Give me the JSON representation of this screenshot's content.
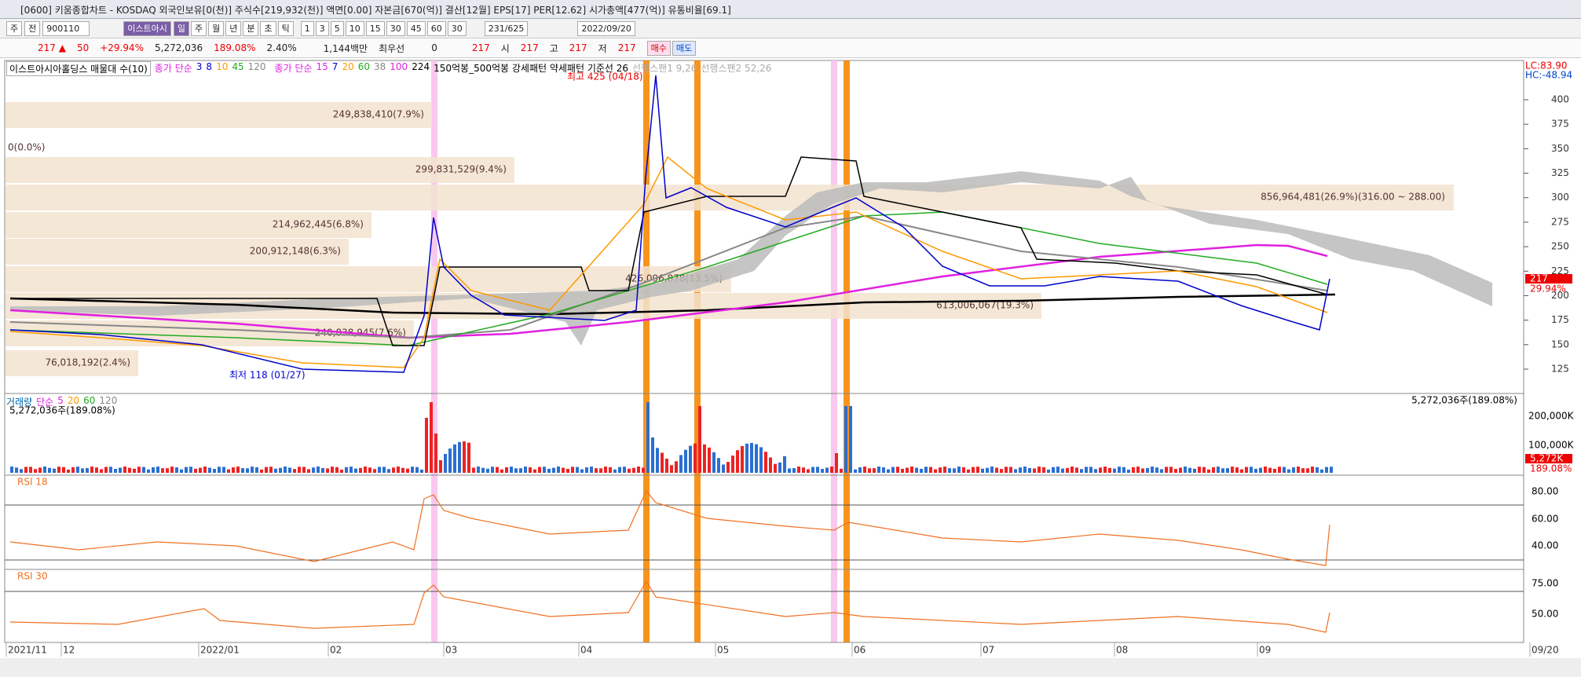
{
  "window": {
    "title": "[0600] 키움종합차트 - KOSDAQ 외국인보유[0(천)] 주식수[219,932(천)] 액면[0.00] 자본금[670(억)] 결산[12월] EPS[17] PER[12.62] 시가총액[477(억)] 유통비율[69.1]"
  },
  "toolbar": {
    "tabs": [
      "주",
      "전"
    ],
    "code": "900110",
    "name": "이스트아시",
    "periods": [
      "일",
      "주",
      "월",
      "년",
      "분",
      "초",
      "틱"
    ],
    "intervals": [
      "1",
      "3",
      "5",
      "10",
      "15",
      "30",
      "45",
      "60",
      "30"
    ],
    "count": "231/625",
    "date": "2022/09/20"
  },
  "quote": {
    "price": "217",
    "change": "50",
    "rate": "+29.94%",
    "volume": "5,272,036",
    "volume_rate": "189.08%",
    "turnover": "2.40%",
    "amount": "1,144백만",
    "best": "최우선",
    "best_qty": "0",
    "last": "217",
    "open_label": "시",
    "open": "217",
    "high_label": "고",
    "high": "217",
    "low_label": "저",
    "low": "217",
    "buy": "매수",
    "sell": "매도"
  },
  "price_panel": {
    "legend": [
      "이스트아시아홀딩스 매물대 수(10)",
      "종가 단순",
      "3",
      "8",
      "10",
      "45",
      "120",
      "종가 단순",
      "15",
      "7",
      "20",
      "60",
      "38",
      "100",
      "224",
      "150억봉_500억봉 강세패턴  약세패턴  기준선 26",
      "선행스팬1 9,26",
      "선행스팬2 52,26"
    ],
    "profile": [
      "249,838,410(7.9%)",
      "0(0.0%)",
      "299,831,529(9.4%)",
      "856,964,481(26.9%)(316.00 ~ 288.00)",
      "214,962,445(6.8%)",
      "200,912,148(6.3%)",
      "426,096,878(13.5%)",
      "613,006,067(19.3%)",
      "240,838,945(7.6%)",
      "76,018,192(2.4%)"
    ],
    "high_note": "최고 425 (04/18)",
    "low_note": "최저 118 (01/27)",
    "axis_ticks": [
      400,
      375,
      350,
      325,
      300,
      275,
      250,
      225,
      200,
      175,
      150,
      125
    ],
    "lc": "LC:83.90",
    "hc": "HC:-48.94",
    "current": "217",
    "current_rate": "29.94%"
  },
  "volume_panel": {
    "legend": [
      "거래량",
      "단순",
      "5",
      "20",
      "60",
      "120"
    ],
    "info": "5,272,036주(189.08%)",
    "axis": [
      "200,000K",
      "100,000K"
    ],
    "current": "5,272K",
    "current_rate": "189.08%"
  },
  "rsi18": {
    "label": "RSI 18",
    "ticks": [
      "80.00",
      "60.00",
      "40.00"
    ]
  },
  "rsi30": {
    "label": "RSI 30",
    "ticks": [
      "75.00",
      "50.00"
    ]
  },
  "x_axis": {
    "labels": [
      "2021/11",
      "12",
      "2022/01",
      "02",
      "03",
      "04",
      "05",
      "06",
      "07",
      "08",
      "09",
      "09/20"
    ]
  }
}
